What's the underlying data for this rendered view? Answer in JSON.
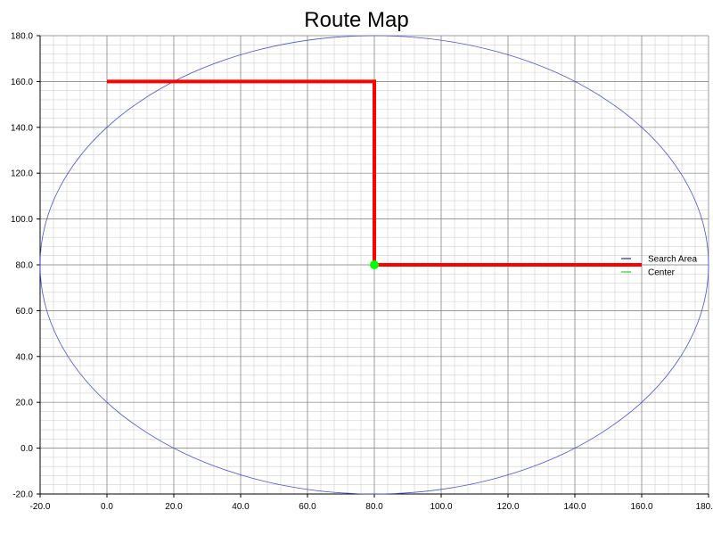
{
  "chart_data": {
    "type": "line",
    "title": "Route Map",
    "xlabel": "",
    "ylabel": "",
    "xlim": [
      -20,
      180
    ],
    "ylim": [
      -20,
      180
    ],
    "x_ticks": [
      "-20.0",
      "0.0",
      "20.0",
      "40.0",
      "60.0",
      "80.0",
      "100.0",
      "120.0",
      "140.0",
      "160.0",
      "180."
    ],
    "y_ticks": [
      "-20.0",
      "0.0",
      "20.0",
      "40.0",
      "60.0",
      "80.0",
      "100.0",
      "120.0",
      "140.0",
      "160.0",
      "180.0"
    ],
    "grid": true,
    "legend": {
      "position": "right"
    },
    "colors": {
      "route": "#ff0000",
      "search_area": "#4455dd",
      "center": "#00ff00",
      "legend_search_line": "#000080",
      "legend_center_line": "#00cc00",
      "grid_major": "#808080",
      "grid_minor": "#d0d0d0"
    },
    "series": [
      {
        "name": "Search Area",
        "kind": "ellipse",
        "center": [
          80,
          80
        ],
        "rx": 100,
        "ry": 100
      },
      {
        "name": "Center",
        "kind": "point",
        "x": [
          80
        ],
        "y": [
          80
        ]
      },
      {
        "kind": "route",
        "x": [
          0,
          80,
          80,
          160
        ],
        "y": [
          160,
          160,
          80,
          80
        ]
      }
    ]
  }
}
